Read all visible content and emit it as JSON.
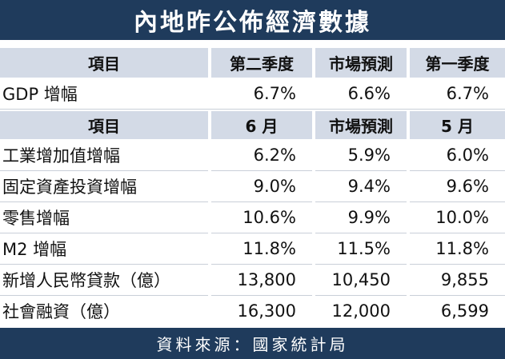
{
  "title": "內地昨公佈經濟數據",
  "header1": [
    "項目",
    "第二季度",
    "市場預測",
    "第一季度"
  ],
  "row_gdp": [
    "GDP 增幅",
    "6.7%",
    "6.6%",
    "6.7%"
  ],
  "header2": [
    "項目",
    "6 月",
    "市場預測",
    "5 月"
  ],
  "rows": [
    [
      "工業增加值增幅",
      "6.2%",
      "5.9%",
      "6.0%"
    ],
    [
      "固定資產投資增幅",
      "9.0%",
      "9.4%",
      "9.6%"
    ],
    [
      "零售增幅",
      "10.6%",
      "9.9%",
      "10.0%"
    ],
    [
      "M2 增幅",
      "11.8%",
      "11.5%",
      "11.8%"
    ],
    [
      "新增人民幣貸款（億）",
      "13,800",
      "10,450",
      "9,855"
    ],
    [
      "社會融資（億）",
      "16,300",
      "12,000",
      "6,599"
    ]
  ],
  "footer": "資料來源：國家統計局",
  "colors": {
    "header_dark": "#1f3b5c",
    "header_light": "#d3dae6"
  }
}
